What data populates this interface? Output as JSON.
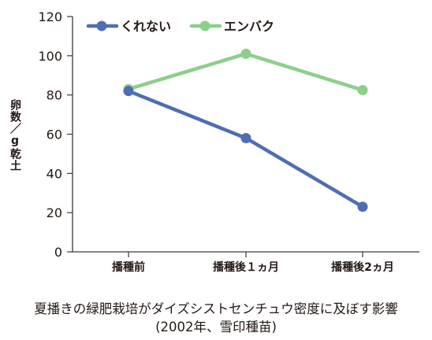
{
  "chart_data": {
    "type": "line",
    "categories": [
      "播種前",
      "播種後１ヵ月",
      "播種後2ヵ月"
    ],
    "series": [
      {
        "name": "くれない",
        "values": [
          82,
          58,
          23
        ],
        "color": "#4f6eb2"
      },
      {
        "name": "エンバク",
        "values": [
          83,
          101,
          82.5
        ],
        "color": "#8ccf8a"
      }
    ],
    "ylabel": "卵数／g乾土",
    "ylim": [
      0,
      120
    ],
    "yticks": [
      0,
      20,
      40,
      60,
      80,
      100,
      120
    ],
    "legend_position": "top-left",
    "grid": false
  },
  "caption": {
    "line1": "夏播きの緑肥栽培がダイズシストセンチュウ密度に及ぼす影響",
    "line2": "(2002年、雪印種苗)"
  }
}
